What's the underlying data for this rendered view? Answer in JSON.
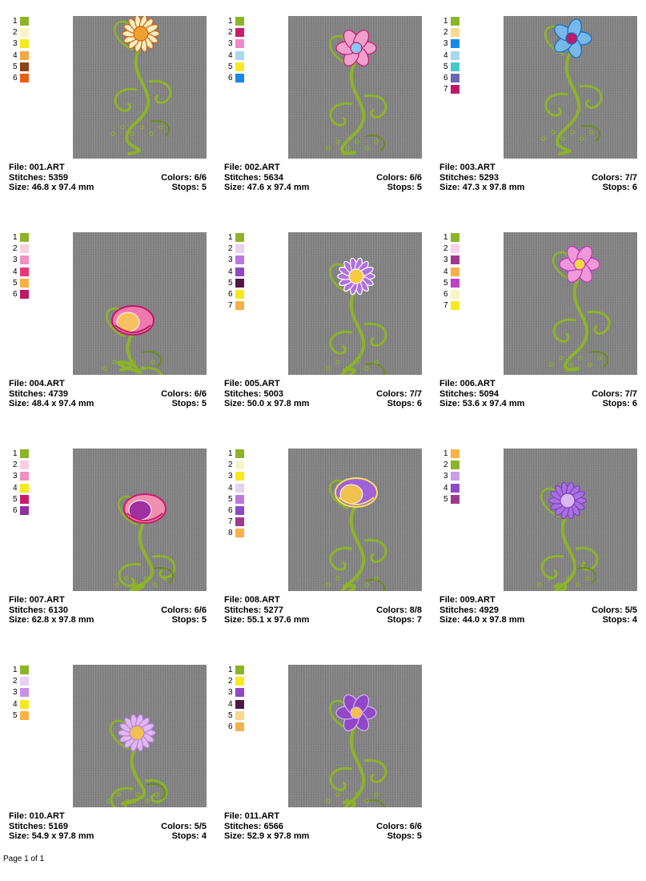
{
  "footer": "Page 1 of 1",
  "designs": [
    {
      "file": "File: 001.ART",
      "stitches": "Stitches: 5359",
      "size": "Size: 46.8 x 97.4 mm",
      "colors": "Colors: 6/6",
      "stops": "Stops: 5",
      "swatches": [
        {
          "n": "1",
          "c": "#8cb428"
        },
        {
          "n": "2",
          "c": "#f8f4c4"
        },
        {
          "n": "3",
          "c": "#f8e820"
        },
        {
          "n": "4",
          "c": "#f0a848"
        },
        {
          "n": "5",
          "c": "#8c4418"
        },
        {
          "n": "6",
          "c": "#e86018"
        }
      ],
      "flower": {
        "petal": "#f8f0c0",
        "center": "#f0a030",
        "accent": "#d06018",
        "type": "daisy"
      }
    },
    {
      "file": "File: 002.ART",
      "stitches": "Stitches: 5634",
      "size": "Size: 47.6 x 97.4 mm",
      "colors": "Colors: 6/6",
      "stops": "Stops: 5",
      "swatches": [
        {
          "n": "1",
          "c": "#8cb428"
        },
        {
          "n": "2",
          "c": "#c81c6c"
        },
        {
          "n": "3",
          "c": "#f088c8"
        },
        {
          "n": "4",
          "c": "#a8d8f0"
        },
        {
          "n": "5",
          "c": "#f8e820"
        },
        {
          "n": "6",
          "c": "#1888e8"
        }
      ],
      "flower": {
        "petal": "#f0a0d0",
        "center": "#88c8f0",
        "accent": "#c81c6c",
        "type": "star"
      }
    },
    {
      "file": "File: 003.ART",
      "stitches": "Stitches: 5293",
      "size": "Size: 47.3 x 97.8 mm",
      "colors": "Colors: 7/7",
      "stops": "Stops: 6",
      "swatches": [
        {
          "n": "1",
          "c": "#8cb428"
        },
        {
          "n": "2",
          "c": "#f8d890"
        },
        {
          "n": "3",
          "c": "#1888e8"
        },
        {
          "n": "4",
          "c": "#a8d8f0"
        },
        {
          "n": "5",
          "c": "#48c8c8"
        },
        {
          "n": "6",
          "c": "#6868b0"
        },
        {
          "n": "7",
          "c": "#c01868"
        }
      ],
      "flower": {
        "petal": "#78b8e8",
        "center": "#c01868",
        "accent": "#1868c8",
        "type": "round"
      }
    },
    {
      "file": "File: 004.ART",
      "stitches": "Stitches: 4739",
      "size": "Size: 48.4 x 97.4 mm",
      "colors": "Colors: 6/6",
      "stops": "Stops: 5",
      "swatches": [
        {
          "n": "1",
          "c": "#8cb428"
        },
        {
          "n": "2",
          "c": "#f8d0e0"
        },
        {
          "n": "3",
          "c": "#f090c0"
        },
        {
          "n": "4",
          "c": "#e83878"
        },
        {
          "n": "5",
          "c": "#f8b048"
        },
        {
          "n": "6",
          "c": "#c01868"
        }
      ],
      "flower": {
        "petal": "#f078b0",
        "center": "#f8c060",
        "accent": "#c01868",
        "type": "rose"
      }
    },
    {
      "file": "File: 005.ART",
      "stitches": "Stitches: 5003",
      "size": "Size: 50.0 x 97.8 mm",
      "colors": "Colors: 7/7",
      "stops": "Stops: 6",
      "swatches": [
        {
          "n": "1",
          "c": "#8cb428"
        },
        {
          "n": "2",
          "c": "#e8d0f0"
        },
        {
          "n": "3",
          "c": "#b878e0"
        },
        {
          "n": "4",
          "c": "#9048c8"
        },
        {
          "n": "5",
          "c": "#501848"
        },
        {
          "n": "6",
          "c": "#f8e820"
        },
        {
          "n": "7",
          "c": "#f8b048"
        }
      ],
      "flower": {
        "petal": "#b070e0",
        "center": "#f8c840",
        "accent": "#ffffff",
        "type": "daisy"
      }
    },
    {
      "file": "File: 006.ART",
      "stitches": "Stitches: 5094",
      "size": "Size: 53.6 x 97.4 mm",
      "colors": "Colors: 7/7",
      "stops": "Stops: 6",
      "swatches": [
        {
          "n": "1",
          "c": "#8cb428"
        },
        {
          "n": "2",
          "c": "#f8d0e8"
        },
        {
          "n": "3",
          "c": "#a03890"
        },
        {
          "n": "4",
          "c": "#f8b048"
        },
        {
          "n": "5",
          "c": "#c040c8"
        },
        {
          "n": "6",
          "c": "#f8f4c4"
        },
        {
          "n": "7",
          "c": "#f8e820"
        }
      ],
      "flower": {
        "petal": "#f098d8",
        "center": "#f8d840",
        "accent": "#c030c8",
        "type": "star"
      }
    },
    {
      "file": "File: 007.ART",
      "stitches": "Stitches: 6130",
      "size": "Size: 62.8 x 97.8 mm",
      "colors": "Colors: 6/6",
      "stops": "Stops: 5",
      "swatches": [
        {
          "n": "1",
          "c": "#8cb428"
        },
        {
          "n": "2",
          "c": "#f8d0e0"
        },
        {
          "n": "3",
          "c": "#f090c0"
        },
        {
          "n": "4",
          "c": "#f8e820"
        },
        {
          "n": "5",
          "c": "#c81c6c"
        },
        {
          "n": "6",
          "c": "#9030a0"
        }
      ],
      "flower": {
        "petal": "#f090b0",
        "center": "#a030a0",
        "accent": "#c81c6c",
        "type": "fan"
      }
    },
    {
      "file": "File: 008.ART",
      "stitches": "Stitches: 5277",
      "size": "Size: 55.1 x 97.6 mm",
      "colors": "Colors: 8/8",
      "stops": "Stops: 7",
      "swatches": [
        {
          "n": "1",
          "c": "#8cb428"
        },
        {
          "n": "2",
          "c": "#f8f4c4"
        },
        {
          "n": "3",
          "c": "#f8e820"
        },
        {
          "n": "4",
          "c": "#e8d0f0"
        },
        {
          "n": "5",
          "c": "#b878e0"
        },
        {
          "n": "6",
          "c": "#9048c8"
        },
        {
          "n": "7",
          "c": "#a03890"
        },
        {
          "n": "8",
          "c": "#f8b048"
        }
      ],
      "flower": {
        "petal": "#a060d8",
        "center": "#f0c050",
        "accent": "#f8e060",
        "type": "tulip"
      }
    },
    {
      "file": "File: 009.ART",
      "stitches": "Stitches: 4929",
      "size": "Size: 44.0 x 97.8 mm",
      "colors": "Colors: 5/5",
      "stops": "Stops: 4",
      "swatches": [
        {
          "n": "1",
          "c": "#f8b048"
        },
        {
          "n": "2",
          "c": "#8cb428"
        },
        {
          "n": "3",
          "c": "#c8a0e8"
        },
        {
          "n": "4",
          "c": "#9048c8"
        },
        {
          "n": "5",
          "c": "#a03890"
        }
      ],
      "flower": {
        "petal": "#a870e0",
        "center": "#d8b8f0",
        "accent": "#8040c0",
        "type": "daisy"
      }
    },
    {
      "file": "File: 010.ART",
      "stitches": "Stitches: 5169",
      "size": "Size: 54.9 x 97.8 mm",
      "colors": "Colors: 5/5",
      "stops": "Stops: 4",
      "swatches": [
        {
          "n": "1",
          "c": "#8cb428"
        },
        {
          "n": "2",
          "c": "#e8d0f0"
        },
        {
          "n": "3",
          "c": "#c890e8"
        },
        {
          "n": "4",
          "c": "#f8e820"
        },
        {
          "n": "5",
          "c": "#f8b048"
        }
      ],
      "flower": {
        "petal": "#e0b8f0",
        "center": "#f0c050",
        "accent": "#b880e0",
        "type": "daisy"
      }
    },
    {
      "file": "File: 011.ART",
      "stitches": "Stitches: 6566",
      "size": "Size: 52.9 x 97.8 mm",
      "colors": "Colors: 6/6",
      "stops": "Stops: 5",
      "swatches": [
        {
          "n": "1",
          "c": "#8cb428"
        },
        {
          "n": "2",
          "c": "#f8e820"
        },
        {
          "n": "3",
          "c": "#9048c8"
        },
        {
          "n": "4",
          "c": "#501848"
        },
        {
          "n": "5",
          "c": "#f8d890"
        },
        {
          "n": "6",
          "c": "#f8b048"
        }
      ],
      "flower": {
        "petal": "#9048c8",
        "center": "#f0c050",
        "accent": "#d8b0f0",
        "type": "star"
      }
    }
  ]
}
